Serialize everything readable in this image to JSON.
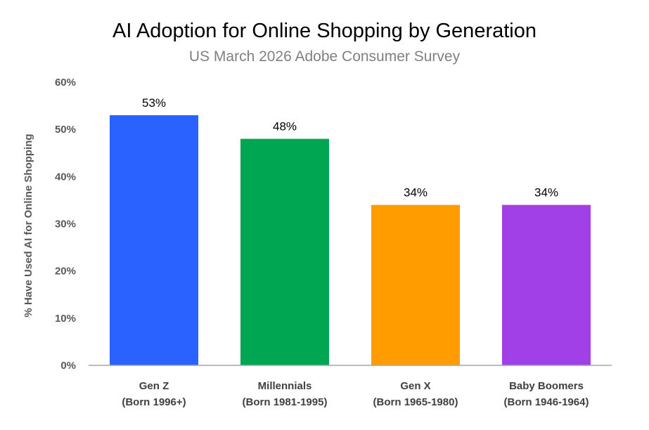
{
  "chart_data": {
    "type": "bar",
    "title": "AI Adoption for Online Shopping by Generation",
    "subtitle": "US March 2026 Adobe Consumer Survey",
    "ylabel": "% Have Used AI for Online Shopping",
    "xlabel": "",
    "ylim": [
      0,
      60
    ],
    "yticks": [
      "0%",
      "10%",
      "20%",
      "30%",
      "40%",
      "50%",
      "60%"
    ],
    "categories": [
      [
        "Gen Z",
        "(Born 1996+)"
      ],
      [
        "Millennials",
        "(Born 1981-1995)"
      ],
      [
        "Gen X",
        "(Born 1965-1980)"
      ],
      [
        "Baby Boomers",
        "(Born 1946-1964)"
      ]
    ],
    "values": [
      53,
      48,
      34,
      34
    ],
    "data_labels": [
      "53%",
      "48%",
      "34%",
      "34%"
    ],
    "colors": [
      "#2962FF",
      "#00A651",
      "#FF9D00",
      "#A040E6"
    ],
    "grid": false,
    "legend": "none"
  }
}
